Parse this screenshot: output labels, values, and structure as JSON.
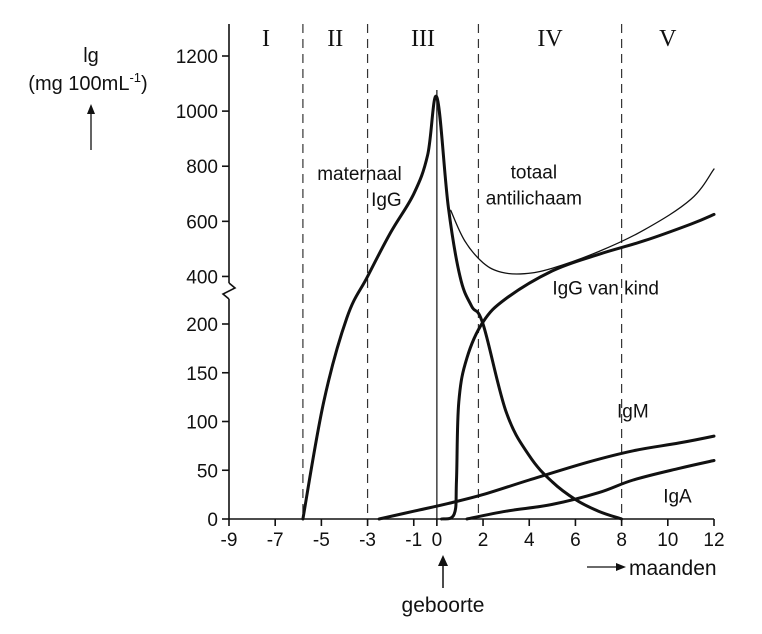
{
  "chart_data": {
    "type": "line",
    "title": "",
    "ylabel_line1": "lg",
    "ylabel_line2": "(mg 100mL",
    "ylabel_sup": "-1",
    "ylabel_close": ")",
    "xlabel": "maanden",
    "birth_label": "geboorte",
    "x_ticks": [
      -9,
      -7,
      -5,
      -3,
      -1,
      0,
      2,
      4,
      6,
      8,
      10,
      12
    ],
    "y_ticks_lower": [
      0,
      50,
      100,
      150,
      200
    ],
    "y_ticks_upper": [
      400,
      600,
      800,
      1000,
      1200
    ],
    "xlim": [
      -9,
      12
    ],
    "ylim_lower": [
      0,
      200
    ],
    "ylim_upper": [
      300,
      1200
    ],
    "period_lines": [
      -5.8,
      -3,
      1.8,
      8
    ],
    "birth_line": 0,
    "periods": [
      {
        "label": "I",
        "x": -7.4
      },
      {
        "label": "II",
        "x": -4.4
      },
      {
        "label": "III",
        "x": -0.6
      },
      {
        "label": "IV",
        "x": 4.9
      },
      {
        "label": "V",
        "x": 10
      }
    ],
    "series": [
      {
        "name": "maternaal IgG",
        "weight": "bold",
        "points": [
          [
            -5.8,
            0
          ],
          [
            -4.9,
            120
          ],
          [
            -3.9,
            230
          ],
          [
            -3.0,
            400
          ],
          [
            -2.0,
            560
          ],
          [
            -1.0,
            700
          ],
          [
            -0.4,
            840
          ],
          [
            0,
            1050
          ],
          [
            0.5,
            650
          ],
          [
            1.0,
            400
          ],
          [
            1.5,
            290
          ],
          [
            2.0,
            200
          ],
          [
            3.0,
            110
          ],
          [
            4.0,
            65
          ],
          [
            5.0,
            38
          ],
          [
            6.0,
            20
          ],
          [
            7.0,
            8
          ],
          [
            8.0,
            0
          ]
        ]
      },
      {
        "name": "totaal antilichaam",
        "weight": "thin",
        "points": [
          [
            0.6,
            640
          ],
          [
            1.2,
            530
          ],
          [
            2.0,
            450
          ],
          [
            2.8,
            415
          ],
          [
            3.8,
            410
          ],
          [
            5.0,
            430
          ],
          [
            7.0,
            490
          ],
          [
            9.0,
            570
          ],
          [
            11.0,
            680
          ],
          [
            12.0,
            790
          ]
        ]
      },
      {
        "name": "IgG van kind",
        "weight": "bold",
        "points": [
          [
            0.2,
            0
          ],
          [
            0.75,
            5
          ],
          [
            0.85,
            40
          ],
          [
            0.95,
            120
          ],
          [
            1.3,
            165
          ],
          [
            2.0,
            210
          ],
          [
            3.0,
            320
          ],
          [
            5.0,
            420
          ],
          [
            7.0,
            480
          ],
          [
            9.0,
            530
          ],
          [
            11.0,
            590
          ],
          [
            12.0,
            625
          ]
        ]
      },
      {
        "name": "IgM",
        "weight": "bold",
        "points": [
          [
            -2.5,
            0
          ],
          [
            -1.0,
            8
          ],
          [
            0.5,
            16
          ],
          [
            2.0,
            25
          ],
          [
            4.0,
            40
          ],
          [
            6.5,
            58
          ],
          [
            8.5,
            70
          ],
          [
            10.5,
            78
          ],
          [
            12.0,
            85
          ]
        ]
      },
      {
        "name": "IgA",
        "weight": "bold",
        "points": [
          [
            1.3,
            0
          ],
          [
            3.0,
            8
          ],
          [
            5.0,
            15
          ],
          [
            7.0,
            27
          ],
          [
            8.5,
            40
          ],
          [
            10.5,
            52
          ],
          [
            12.0,
            60
          ]
        ]
      }
    ],
    "annotations": [
      {
        "lines": [
          "maternaal",
          "IgG"
        ],
        "x": -3.2,
        "y": 750,
        "anchor": "start",
        "align": "right"
      },
      {
        "lines": [
          "totaal",
          "antilichaam"
        ],
        "x": 4.2,
        "y": 755,
        "anchor": "middle"
      },
      {
        "lines": [
          "IgG van kind"
        ],
        "x": 5.0,
        "y": 335,
        "anchor": "start"
      },
      {
        "lines": [
          "IgM"
        ],
        "x": 7.8,
        "y": 104,
        "anchor": "start"
      },
      {
        "lines": [
          "IgA"
        ],
        "x": 9.8,
        "y": 17,
        "anchor": "start"
      }
    ]
  }
}
